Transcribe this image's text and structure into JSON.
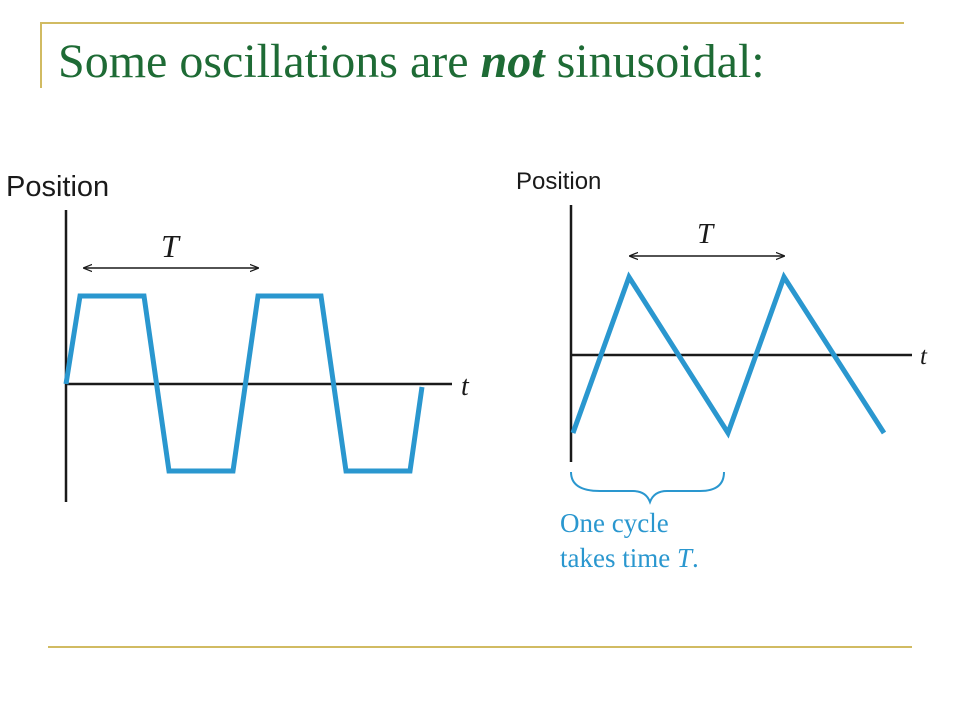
{
  "colors": {
    "frame": "#d1bb62",
    "title": "#1e6b35",
    "wave": "#2a97cf",
    "axis": "#1a1a1a",
    "caption": "#2a97cf"
  },
  "slide": {
    "title_before": "Some oscillations are ",
    "title_emphasis": "not",
    "title_after": " sinusoidal:"
  },
  "left_graph": {
    "y_label": "Position",
    "t_label": "t",
    "period_label": "T",
    "waveform": "trapezoidal"
  },
  "right_graph": {
    "y_label": "Position",
    "t_label": "t",
    "period_label": "T",
    "waveform": "triangular",
    "caption_line1": "One cycle",
    "caption_line2_before": "takes time ",
    "caption_line2_symbol": "T",
    "caption_line2_after": "."
  }
}
